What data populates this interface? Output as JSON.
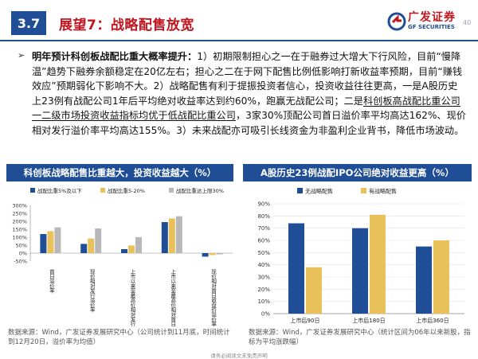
{
  "header": {
    "section_number": "3.7",
    "title": "展望7：战略配售放宽",
    "logo_cn": "广发证券",
    "logo_en": "GF SECURITIES",
    "page_number": "40",
    "colors": {
      "brand_blue": "#1f4e96",
      "brand_red": "#c0161f"
    }
  },
  "body": {
    "bullet": "➢",
    "seg1": "明年预计科创板战配比重大概率提升：",
    "seg2": "1）初期限制担心之一在于融券过大增大下行风险，目前“慢降温”趋势下融券余额稳定在20亿左右；担心之二在于网下配售比例低影响打新收益率预期，目前“赚钱效应”预期弱化下影响不大。2）战略配售有利于提振投资者信心，投资收益往往更高，一是A股历史上23例有战配公司1年后平均绝对收益率达到约60%，跑赢无战配公司；二是",
    "seg3": "科创板高战配比重公司一二级市场投资收益指标均优于低战配比重公司",
    "seg4": "，3家30%顶配公司首日溢价率平均高达162%、现价相对发行溢价率平均高达155%。3）未来战配亦可吸引长线资金为非盈利企业背书，降低市场波动。"
  },
  "chart_data": [
    {
      "type": "bar",
      "title": "科创板战略配售比重越大，投资收益越大（%）",
      "categories": [
        "首日溢价率",
        "现价相对发行溢价率",
        "上市以来至最高价相对发行价溢价率",
        "上市以来至最高价相对首日收盘价溢价率",
        "现价相对首日收盘价溢价率"
      ],
      "series": [
        {
          "name": "战配比重5%及以下",
          "color": "#1f4e96",
          "values": [
            120,
            58,
            25,
            195,
            -22
          ]
        },
        {
          "name": "战配比重5-20%",
          "color": "#e8c15b",
          "values": [
            138,
            92,
            48,
            218,
            -12
          ]
        },
        {
          "name": "战配比重达上限30%",
          "color": "#b8b8b8",
          "values": [
            162,
            155,
            100,
            232,
            -8
          ]
        }
      ],
      "ylim": [
        -50,
        300
      ],
      "yticks": [
        "300%",
        "250%",
        "200%",
        "150%",
        "100%",
        "50%",
        "0%",
        "-50%"
      ],
      "tick_values": [
        300,
        250,
        200,
        150,
        100,
        50,
        0,
        -50
      ],
      "legend": "top",
      "grid": false
    },
    {
      "type": "bar",
      "title": "A股历史23例战配IPO公司绝对收益更高（%）",
      "categories": [
        "上市后90日",
        "上市后180日",
        "上市后360日"
      ],
      "series": [
        {
          "name": "无战略配售",
          "color": "#1f4e96",
          "values": [
            74,
            70,
            55
          ]
        },
        {
          "name": "有战略配售",
          "color": "#e8c15b",
          "values": [
            38,
            81,
            60
          ]
        }
      ],
      "ylim": [
        0,
        90
      ],
      "yticks": [
        "90%",
        "80%",
        "70%",
        "60%",
        "50%",
        "40%",
        "30%",
        "20%",
        "10%",
        "0%"
      ],
      "tick_values": [
        90,
        80,
        70,
        60,
        50,
        40,
        30,
        20,
        10,
        0
      ],
      "legend": "top",
      "grid": true
    }
  ],
  "sources": {
    "left": "数据来源：Wind，广发证券发展研究中心（公司统计到11月底，时间统计到12月20日，溢价率为均值）",
    "right": "数据来源：Wind，广发证券发展研究中心（统计区间为06年以来新股，指标为平均涨跌幅）"
  },
  "footer": "请务必阅读文末免责声明"
}
